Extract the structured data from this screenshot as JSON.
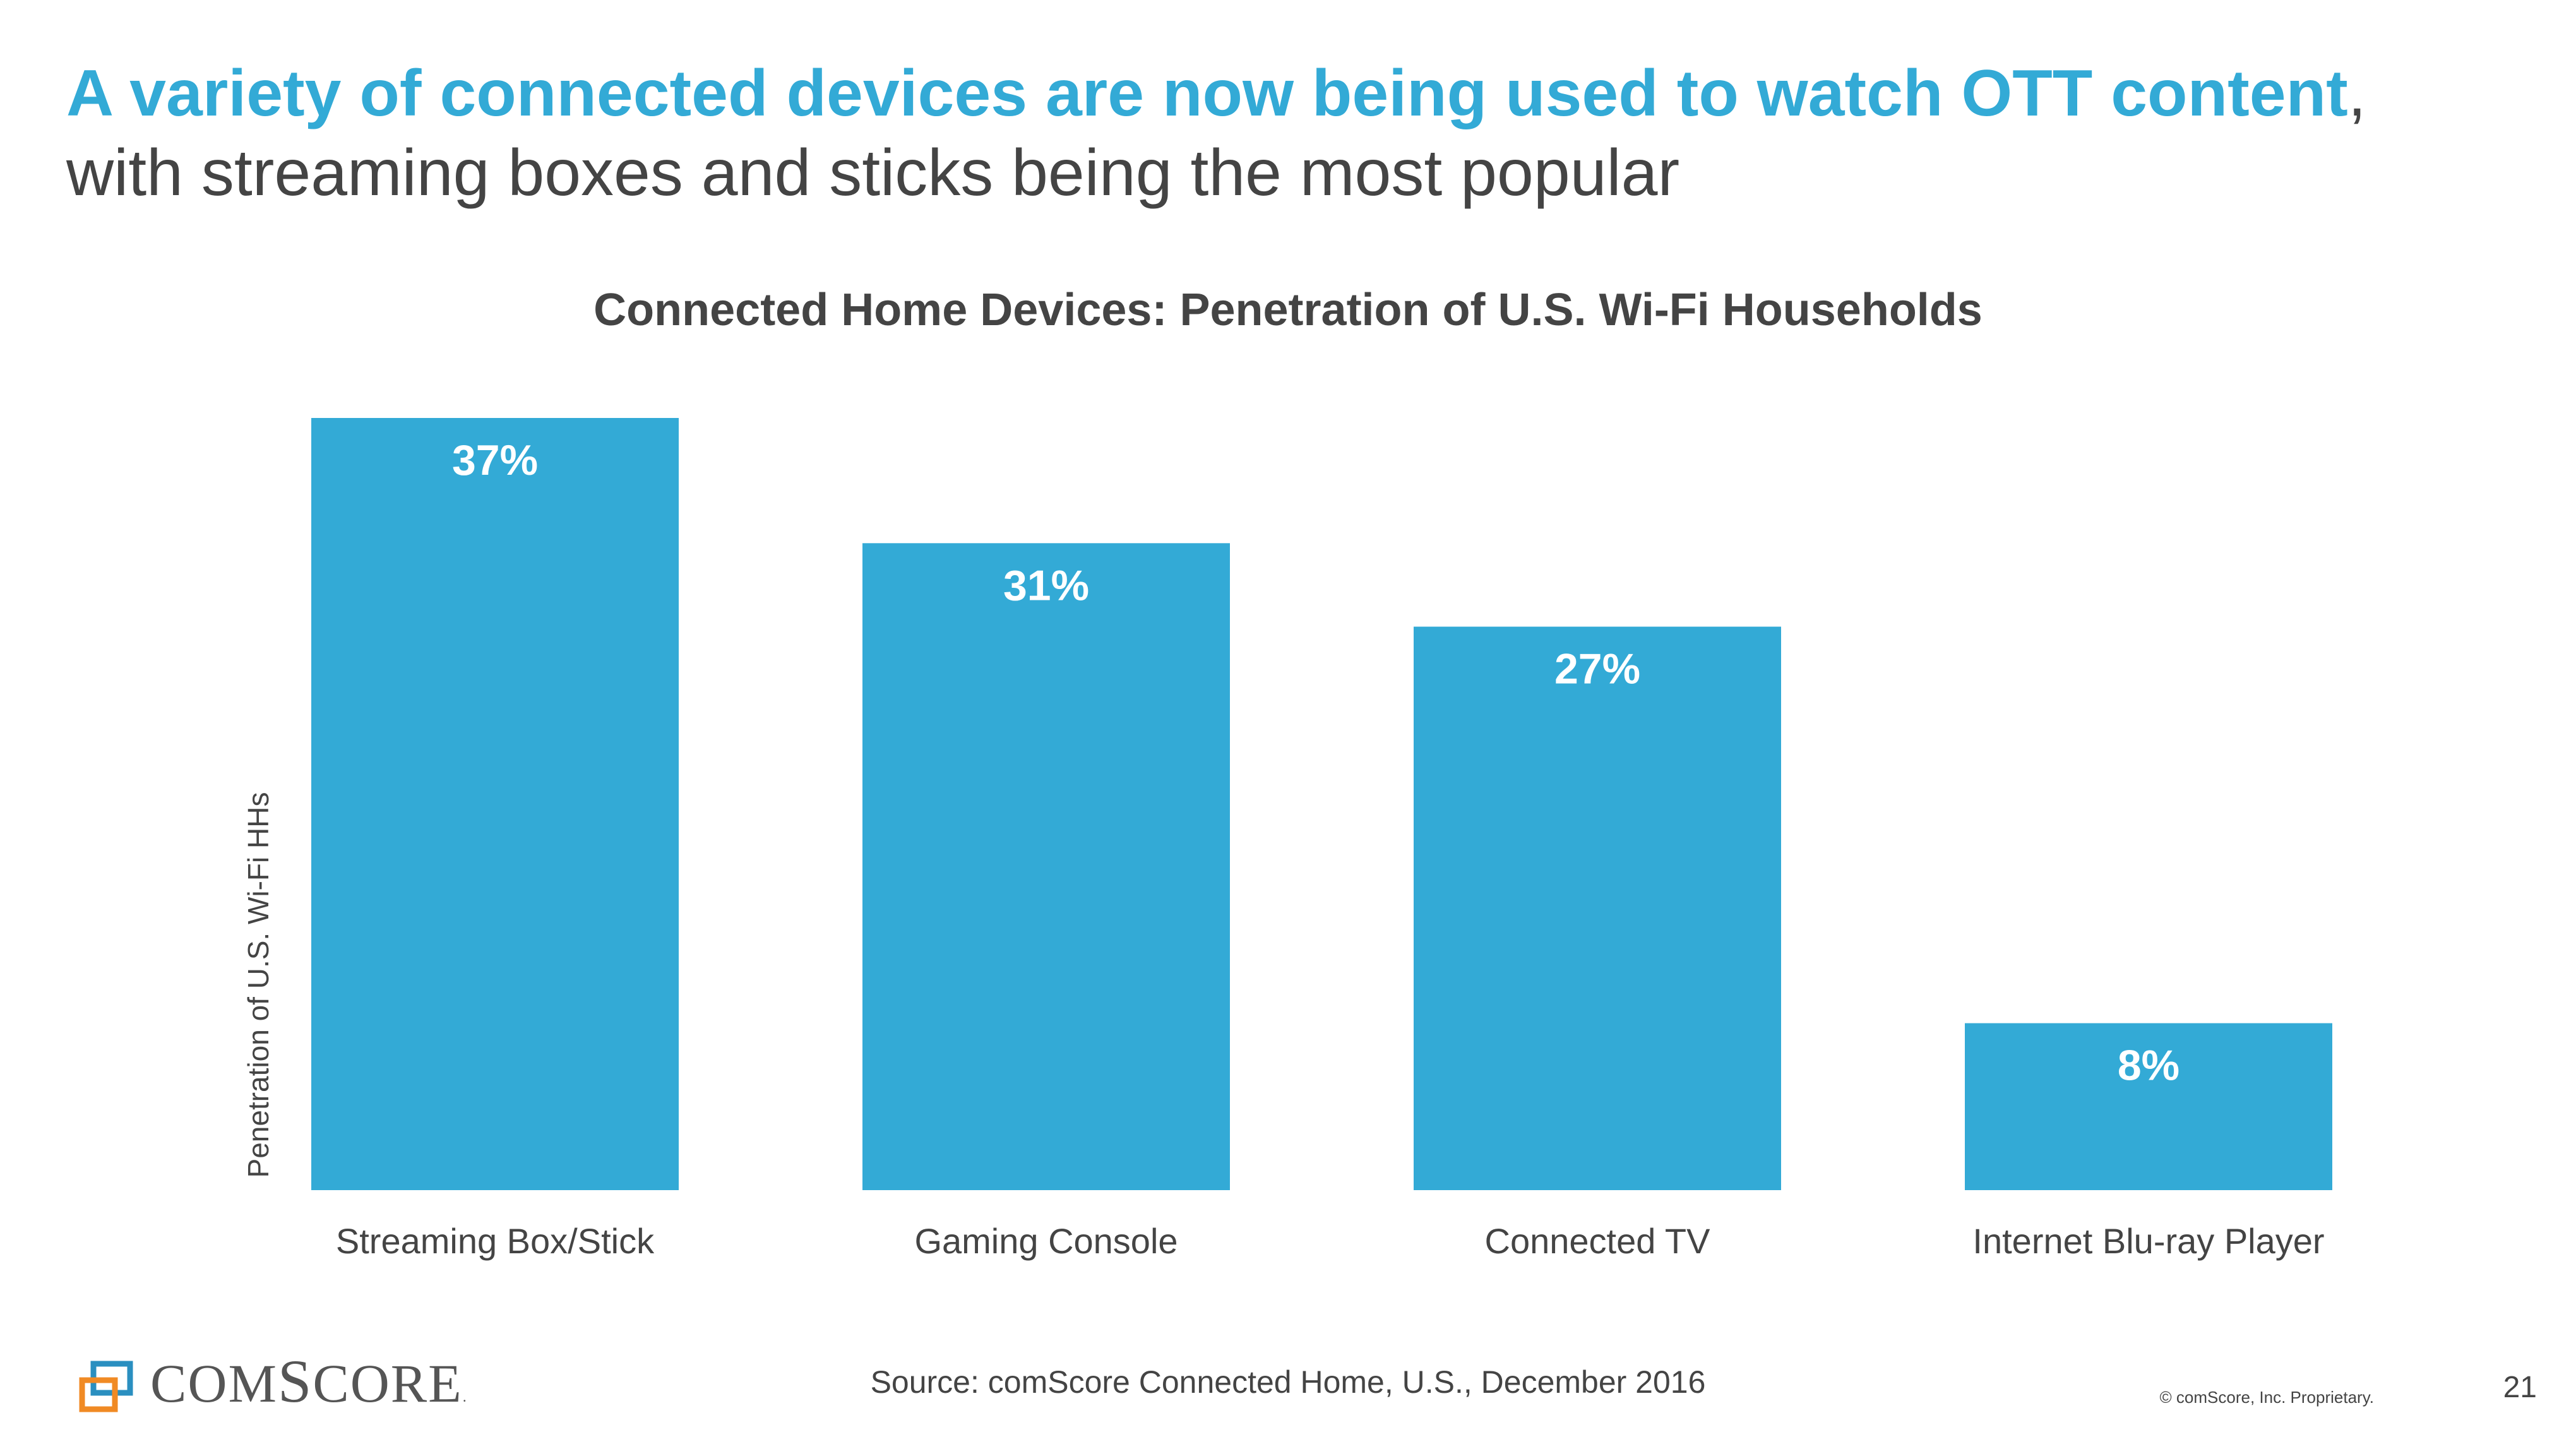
{
  "slide": {
    "headline_main": "A variety of connected devices are now being used to watch OTT content",
    "headline_comma": ",",
    "headline_sub": "with streaming boxes and sticks being the most popular",
    "source": "Source: comScore Connected Home, U.S., December 2016",
    "copyright": "© comScore, Inc. Proprietary.",
    "page_number": "21",
    "logo": {
      "icon": "comscore-logo-icon",
      "part1": "COM",
      "part2": "S",
      "part3": "CORE",
      "tm": "."
    }
  },
  "colors": {
    "accent": "#33aad6",
    "text": "#444444",
    "logo_blue": "#2a8fc0",
    "logo_orange": "#f08a24"
  },
  "chart_data": {
    "type": "bar",
    "title": "Connected Home Devices: Penetration of U.S. Wi-Fi Households",
    "categories": [
      "Streaming Box/Stick",
      "Gaming Console",
      "Connected TV",
      "Internet Blu-ray Player"
    ],
    "values": [
      37,
      31,
      27,
      8
    ],
    "value_labels": [
      "37%",
      "31%",
      "27%",
      "8%"
    ],
    "xlabel": "",
    "ylabel": "Penetration of U.S. Wi-Fi HHs",
    "ylim": [
      0,
      37
    ],
    "grid": false,
    "legend": "none",
    "bar_color": "#33aad6"
  }
}
